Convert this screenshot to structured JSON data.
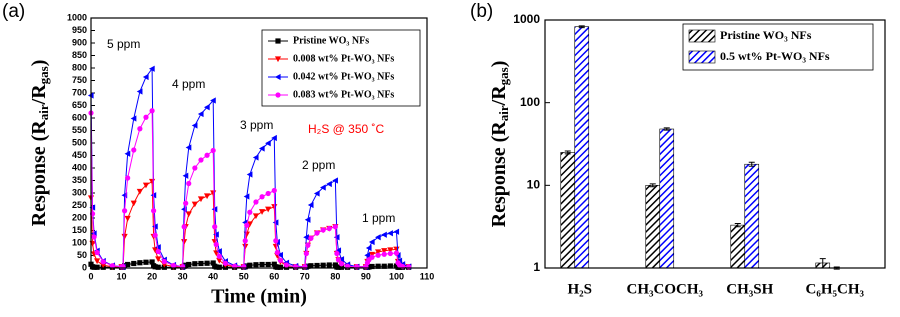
{
  "chart_data": [
    {
      "type": "line",
      "panel_label": "(a)",
      "x_label": "Time (min)",
      "y_label_parts": [
        "Response (R",
        "air",
        "/R",
        "gas",
        ")"
      ],
      "xlim": [
        0,
        110
      ],
      "xticks": [
        0,
        10,
        20,
        30,
        40,
        50,
        60,
        70,
        80,
        90,
        100,
        110
      ],
      "ylim": [
        0,
        1000
      ],
      "yticks": [
        0,
        50,
        100,
        150,
        200,
        250,
        300,
        350,
        400,
        450,
        500,
        550,
        600,
        650,
        700,
        750,
        800,
        850,
        900,
        950,
        1000
      ],
      "x": [
        0,
        0.5,
        1,
        2,
        4,
        7,
        10,
        10.5,
        11,
        12,
        14,
        16,
        18,
        20,
        20.5,
        21,
        22,
        24,
        27,
        30,
        30.5,
        31,
        32,
        34,
        36,
        38,
        40,
        40.5,
        41,
        42,
        44,
        47,
        50,
        50.5,
        51,
        52,
        54,
        56,
        58,
        60,
        60.5,
        61,
        62,
        64,
        67,
        70,
        70.5,
        71,
        72,
        74,
        76,
        78,
        80,
        80.5,
        81,
        82,
        84,
        87,
        90,
        90.5,
        91,
        92,
        94,
        96,
        98,
        100,
        100.5,
        101,
        102,
        104
      ],
      "series": [
        {
          "name": "Pristine WO₃ NFs",
          "color": "#000000",
          "marker": "square",
          "values": [
            15,
            5,
            3,
            3,
            3,
            3,
            3,
            3,
            9,
            14,
            18,
            21,
            23,
            24,
            9,
            5,
            3,
            3,
            3,
            3,
            7,
            11,
            14,
            17,
            18,
            19,
            20,
            7,
            4,
            3,
            3,
            3,
            3,
            5,
            8,
            11,
            13,
            14,
            14,
            15,
            5,
            3,
            3,
            3,
            3,
            3,
            4,
            7,
            9,
            10,
            11,
            12,
            12,
            4,
            3,
            3,
            3,
            3,
            3,
            3,
            4,
            6,
            7,
            7,
            8,
            8,
            3,
            3,
            3,
            3
          ]
        },
        {
          "name": "0.008 wt% Pt-WO₃ NFs",
          "color": "#ff0000",
          "marker": "triangle-down",
          "values": [
            280,
            98,
            56,
            28,
            11,
            5,
            5,
            5,
            126,
            198,
            259,
            306,
            331,
            346,
            126,
            72,
            36,
            14,
            5,
            5,
            105,
            165,
            216,
            255,
            276,
            288,
            300,
            105,
            60,
            30,
            12,
            5,
            5,
            86,
            135,
            176,
            208,
            225,
            235,
            245,
            86,
            49,
            25,
            10,
            5,
            5,
            58,
            91,
            119,
            140,
            152,
            158,
            165,
            58,
            33,
            17,
            7,
            5,
            5,
            26,
            41,
            54,
            64,
            69,
            72,
            75,
            26,
            15,
            8,
            5
          ]
        },
        {
          "name": "0.042 wt% Pt-WO₃ NFs",
          "color": "#0000ff",
          "marker": "triangle-left",
          "values": [
            690,
            242,
            138,
            69,
            28,
            10,
            5,
            5,
            291,
            457,
            598,
            706,
            764,
            797,
            291,
            166,
            83,
            33,
            12,
            5,
            235,
            369,
            482,
            570,
            616,
            643,
            670,
            235,
            134,
            67,
            27,
            10,
            5,
            182,
            286,
            374,
            442,
            478,
            499,
            520,
            182,
            104,
            52,
            21,
            8,
            5,
            123,
            193,
            252,
            298,
            322,
            336,
            350,
            123,
            70,
            35,
            14,
            5,
            5,
            51,
            80,
            104,
            123,
            133,
            139,
            145,
            51,
            29,
            15,
            6
          ]
        },
        {
          "name": "0.083 wt% Pt-WO₃ NFs",
          "color": "#ff00ff",
          "marker": "circle",
          "values": [
            620,
            217,
            124,
            62,
            25,
            9,
            5,
            5,
            229,
            360,
            472,
            557,
            603,
            629,
            229,
            131,
            66,
            26,
            10,
            5,
            165,
            259,
            338,
            400,
            432,
            451,
            470,
            165,
            94,
            47,
            19,
            7,
            5,
            109,
            171,
            223,
            264,
            285,
            298,
            310,
            109,
            62,
            31,
            12,
            5,
            5,
            58,
            91,
            119,
            140,
            152,
            158,
            165,
            58,
            33,
            17,
            7,
            5,
            5,
            21,
            33,
            43,
            51,
            55,
            58,
            60,
            21,
            12,
            6,
            5
          ]
        }
      ],
      "annotations": [
        {
          "text": "5 ppm",
          "color": "#000000"
        },
        {
          "text": "4 ppm",
          "color": "#000000"
        },
        {
          "text": "3 ppm",
          "color": "#000000"
        },
        {
          "text": "2 ppm",
          "color": "#000000"
        },
        {
          "text": "1 ppm",
          "color": "#000000"
        },
        {
          "text": "H₂S @ 350 ˚C",
          "color": "#ff0000"
        }
      ]
    },
    {
      "type": "bar",
      "panel_label": "(b)",
      "y_label_parts": [
        "Response (R",
        "air",
        "/R",
        "gas",
        ")"
      ],
      "categories": [
        "H₂S",
        "CH₃COCH₃",
        "CH₃SH",
        "C₆H₅CH₃"
      ],
      "log_scale": true,
      "ylim": [
        1,
        1000
      ],
      "yticks": [
        1,
        10,
        100,
        1000
      ],
      "series": [
        {
          "name": "Pristine WO₃ NFs",
          "color": "#000000",
          "values": [
            25,
            10,
            3.3,
            1.15
          ],
          "errors": [
            1,
            0.4,
            0.15,
            0.15
          ]
        },
        {
          "name": "0.5 wt% Pt-WO₃ NFs",
          "color": "#0000ff",
          "values": [
            830,
            48,
            18,
            1.0
          ],
          "errors": [
            20,
            1.5,
            1,
            0.03
          ]
        }
      ]
    }
  ]
}
